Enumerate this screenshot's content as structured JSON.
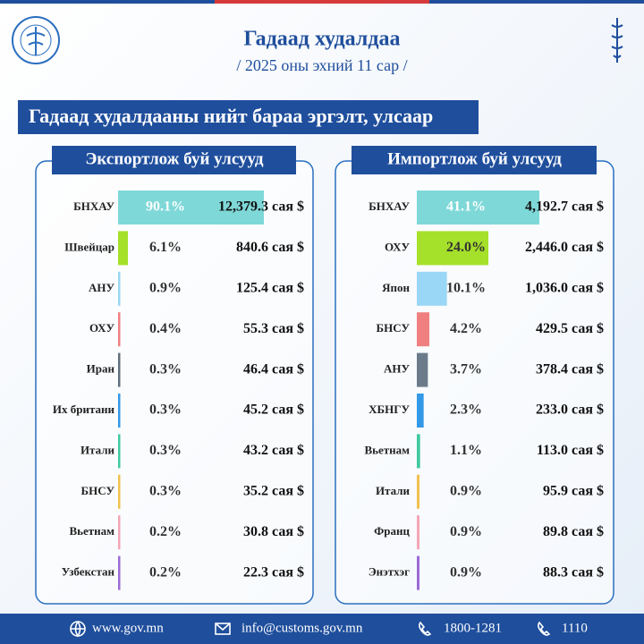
{
  "header": {
    "title": "Гадаад худалдаа",
    "subtitle": "/ 2025 оны эхний 11 сар /",
    "banner": "Гадаад худалдааны нийт бараа эргэлт, улсаар"
  },
  "chart_data": [
    {
      "type": "bar",
      "title": "Экспортлож буй улсууд",
      "categories": [
        "БНХАУ",
        "Швейцар",
        "АНУ",
        "ОХУ",
        "Иран",
        "Их британи",
        "Итали",
        "БНСУ",
        "Вьетнам",
        "Узбекстан"
      ],
      "values": [
        90.1,
        6.1,
        0.9,
        0.4,
        0.3,
        0.3,
        0.3,
        0.3,
        0.2,
        0.2
      ],
      "value_labels": [
        "90.1%",
        "6.1%",
        "0.9%",
        "0.4%",
        "0.3%",
        "0.3%",
        "0.3%",
        "0.3%",
        "0.2%",
        "0.2%"
      ],
      "amounts": [
        12379.3,
        840.6,
        125.4,
        55.3,
        46.4,
        45.2,
        43.2,
        35.2,
        30.8,
        22.3
      ],
      "amount_labels": [
        "12,379.3 сая $",
        "840.6 сая $",
        "125.4 сая $",
        "55.3 сая $",
        "46.4 сая $",
        "45.2 сая $",
        "43.2 сая $",
        "35.2 сая $",
        "30.8 сая $",
        "22.3 сая $"
      ],
      "colors": [
        "#7fd8d8",
        "#a5e02a",
        "#9ad6f5",
        "#f08080",
        "#5f6f7e",
        "#3399e6",
        "#40c9a0",
        "#f2c14e",
        "#f4a6b6",
        "#9b6bd6"
      ]
    },
    {
      "type": "bar",
      "title": "Импортлож буй улсууд",
      "categories": [
        "БНХАУ",
        "ОХУ",
        "Япон",
        "БНСУ",
        "АНУ",
        "ХБНГУ",
        "Вьетнам",
        "Итали",
        "Франц",
        "Энэтхэг"
      ],
      "values": [
        41.1,
        24.0,
        10.1,
        4.2,
        3.7,
        2.3,
        1.1,
        0.9,
        0.9,
        0.9
      ],
      "value_labels": [
        "41.1%",
        "24.0%",
        "10.1%",
        "4.2%",
        "3.7%",
        "2.3%",
        "1.1%",
        "0.9%",
        "0.9%",
        "0.9%"
      ],
      "amounts": [
        4192.7,
        2446.0,
        1036.0,
        429.5,
        378.4,
        233.0,
        113.0,
        95.9,
        89.8,
        88.3
      ],
      "amount_labels": [
        "4,192.7 сая $",
        "2,446.0 сая $",
        "1,036.0 сая $",
        "429.5 сая $",
        "378.4 сая $",
        "233.0 сая $",
        "113.0 сая $",
        "95.9 сая $",
        "89.8 сая $",
        "88.3 сая $"
      ],
      "colors": [
        "#7fd8d8",
        "#a5e02a",
        "#9ad6f5",
        "#f08080",
        "#6b7b8a",
        "#3399e6",
        "#40c9a0",
        "#f2c14e",
        "#f4a6b6",
        "#9b6bd6"
      ]
    }
  ],
  "footer": {
    "items": [
      "www.gov.mn",
      "info@customs.gov.mn",
      "1800-1281",
      "1110"
    ]
  }
}
